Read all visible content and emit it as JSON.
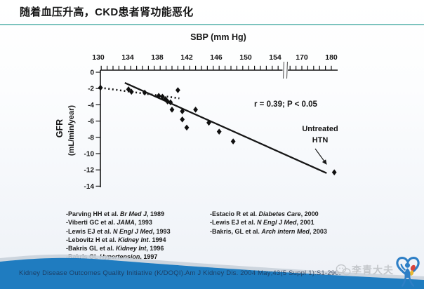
{
  "slide": {
    "title": "随着血压升高，CKD患者肾功能恶化",
    "footer_citation": "Kidney Disease Outcomes Quality Initiative (K/DOQI).Am J Kidney Dis. 2004 May;43(5 Suppl 1):S1-290.",
    "watermark_text": "李青大夫",
    "colors": {
      "accent_teal": "#7cc3be",
      "wave_blue": "#1f7cc0",
      "ink": "#161616",
      "watermark_gray": "#c4c7cb"
    }
  },
  "chart_data": {
    "type": "scatter",
    "xlabel": "SBP (mm Hg)",
    "ylabel_line1": "GFR",
    "ylabel_line2": "(mL/min/year)",
    "x_ticks_before_break": [
      130,
      134,
      138,
      142,
      146,
      150,
      154
    ],
    "x_ticks_after_break": [
      170,
      180
    ],
    "has_x_axis_break": true,
    "y_ticks": [
      0,
      -2,
      -4,
      -6,
      -8,
      -10,
      -12,
      -14
    ],
    "ylim": [
      -14,
      0
    ],
    "points": [
      [
        130.3,
        -1.9
      ],
      [
        134.1,
        -2.1
      ],
      [
        134.5,
        -2.4
      ],
      [
        136.3,
        -2.5
      ],
      [
        138.2,
        -2.9
      ],
      [
        138.7,
        -3.0
      ],
      [
        139.1,
        -3.3
      ],
      [
        139.4,
        -3.6
      ],
      [
        139.8,
        -3.7
      ],
      [
        140.8,
        -2.2
      ],
      [
        140.0,
        -4.6
      ],
      [
        141.4,
        -4.8
      ],
      [
        143.2,
        -4.6
      ],
      [
        141.4,
        -5.8
      ],
      [
        142.0,
        -6.8
      ],
      [
        145.0,
        -6.2
      ],
      [
        146.4,
        -7.3
      ],
      [
        148.3,
        -8.5
      ]
    ],
    "untreated_point": [
      181,
      -12.3
    ],
    "trend_line": {
      "start": [
        133.6,
        -1.3
      ],
      "end": [
        178.4,
        -12.4
      ]
    },
    "dotted_line": {
      "start": [
        130.3,
        -1.9
      ],
      "end": [
        141.0,
        -3.2
      ]
    },
    "correlation_label": "r = 0.39; P < 0.05",
    "untreated_label_line1": "Untreated",
    "untreated_label_line2": "HTN"
  },
  "references": {
    "left": [
      {
        "authors": "-Parving HH et al.  ",
        "journal": "Br Med J",
        "suffix": ", 1989"
      },
      {
        "authors": "-Viberti GC et al. ",
        "journal": "JAMA",
        "suffix": ", 1993"
      },
      {
        "authors": "-Lewis EJ et al.  ",
        "journal": "N Engl J Med",
        "suffix": ", 1993"
      },
      {
        "authors": "-Lebovitz H et al.  ",
        "journal": "Kidney Int",
        "suffix": ". 1994"
      },
      {
        "authors": "-Bakris GL et al.  ",
        "journal": "Kidney Int",
        "suffix": ", 1996"
      },
      {
        "authors": "-Bakris GL ",
        "journal": "Hypertension",
        "suffix": ", 1997"
      }
    ],
    "right": [
      {
        "authors": "-Estacio R et al.  ",
        "journal": "Diabetes Care",
        "suffix": ", 2000"
      },
      {
        "authors": "-Lewis EJ et al.  ",
        "journal": "N Engl J Med",
        "suffix": ", 2001"
      },
      {
        "authors": "-Bakris, GL et al.  ",
        "journal": "Arch intern Med",
        "suffix": ", 2003"
      }
    ]
  }
}
